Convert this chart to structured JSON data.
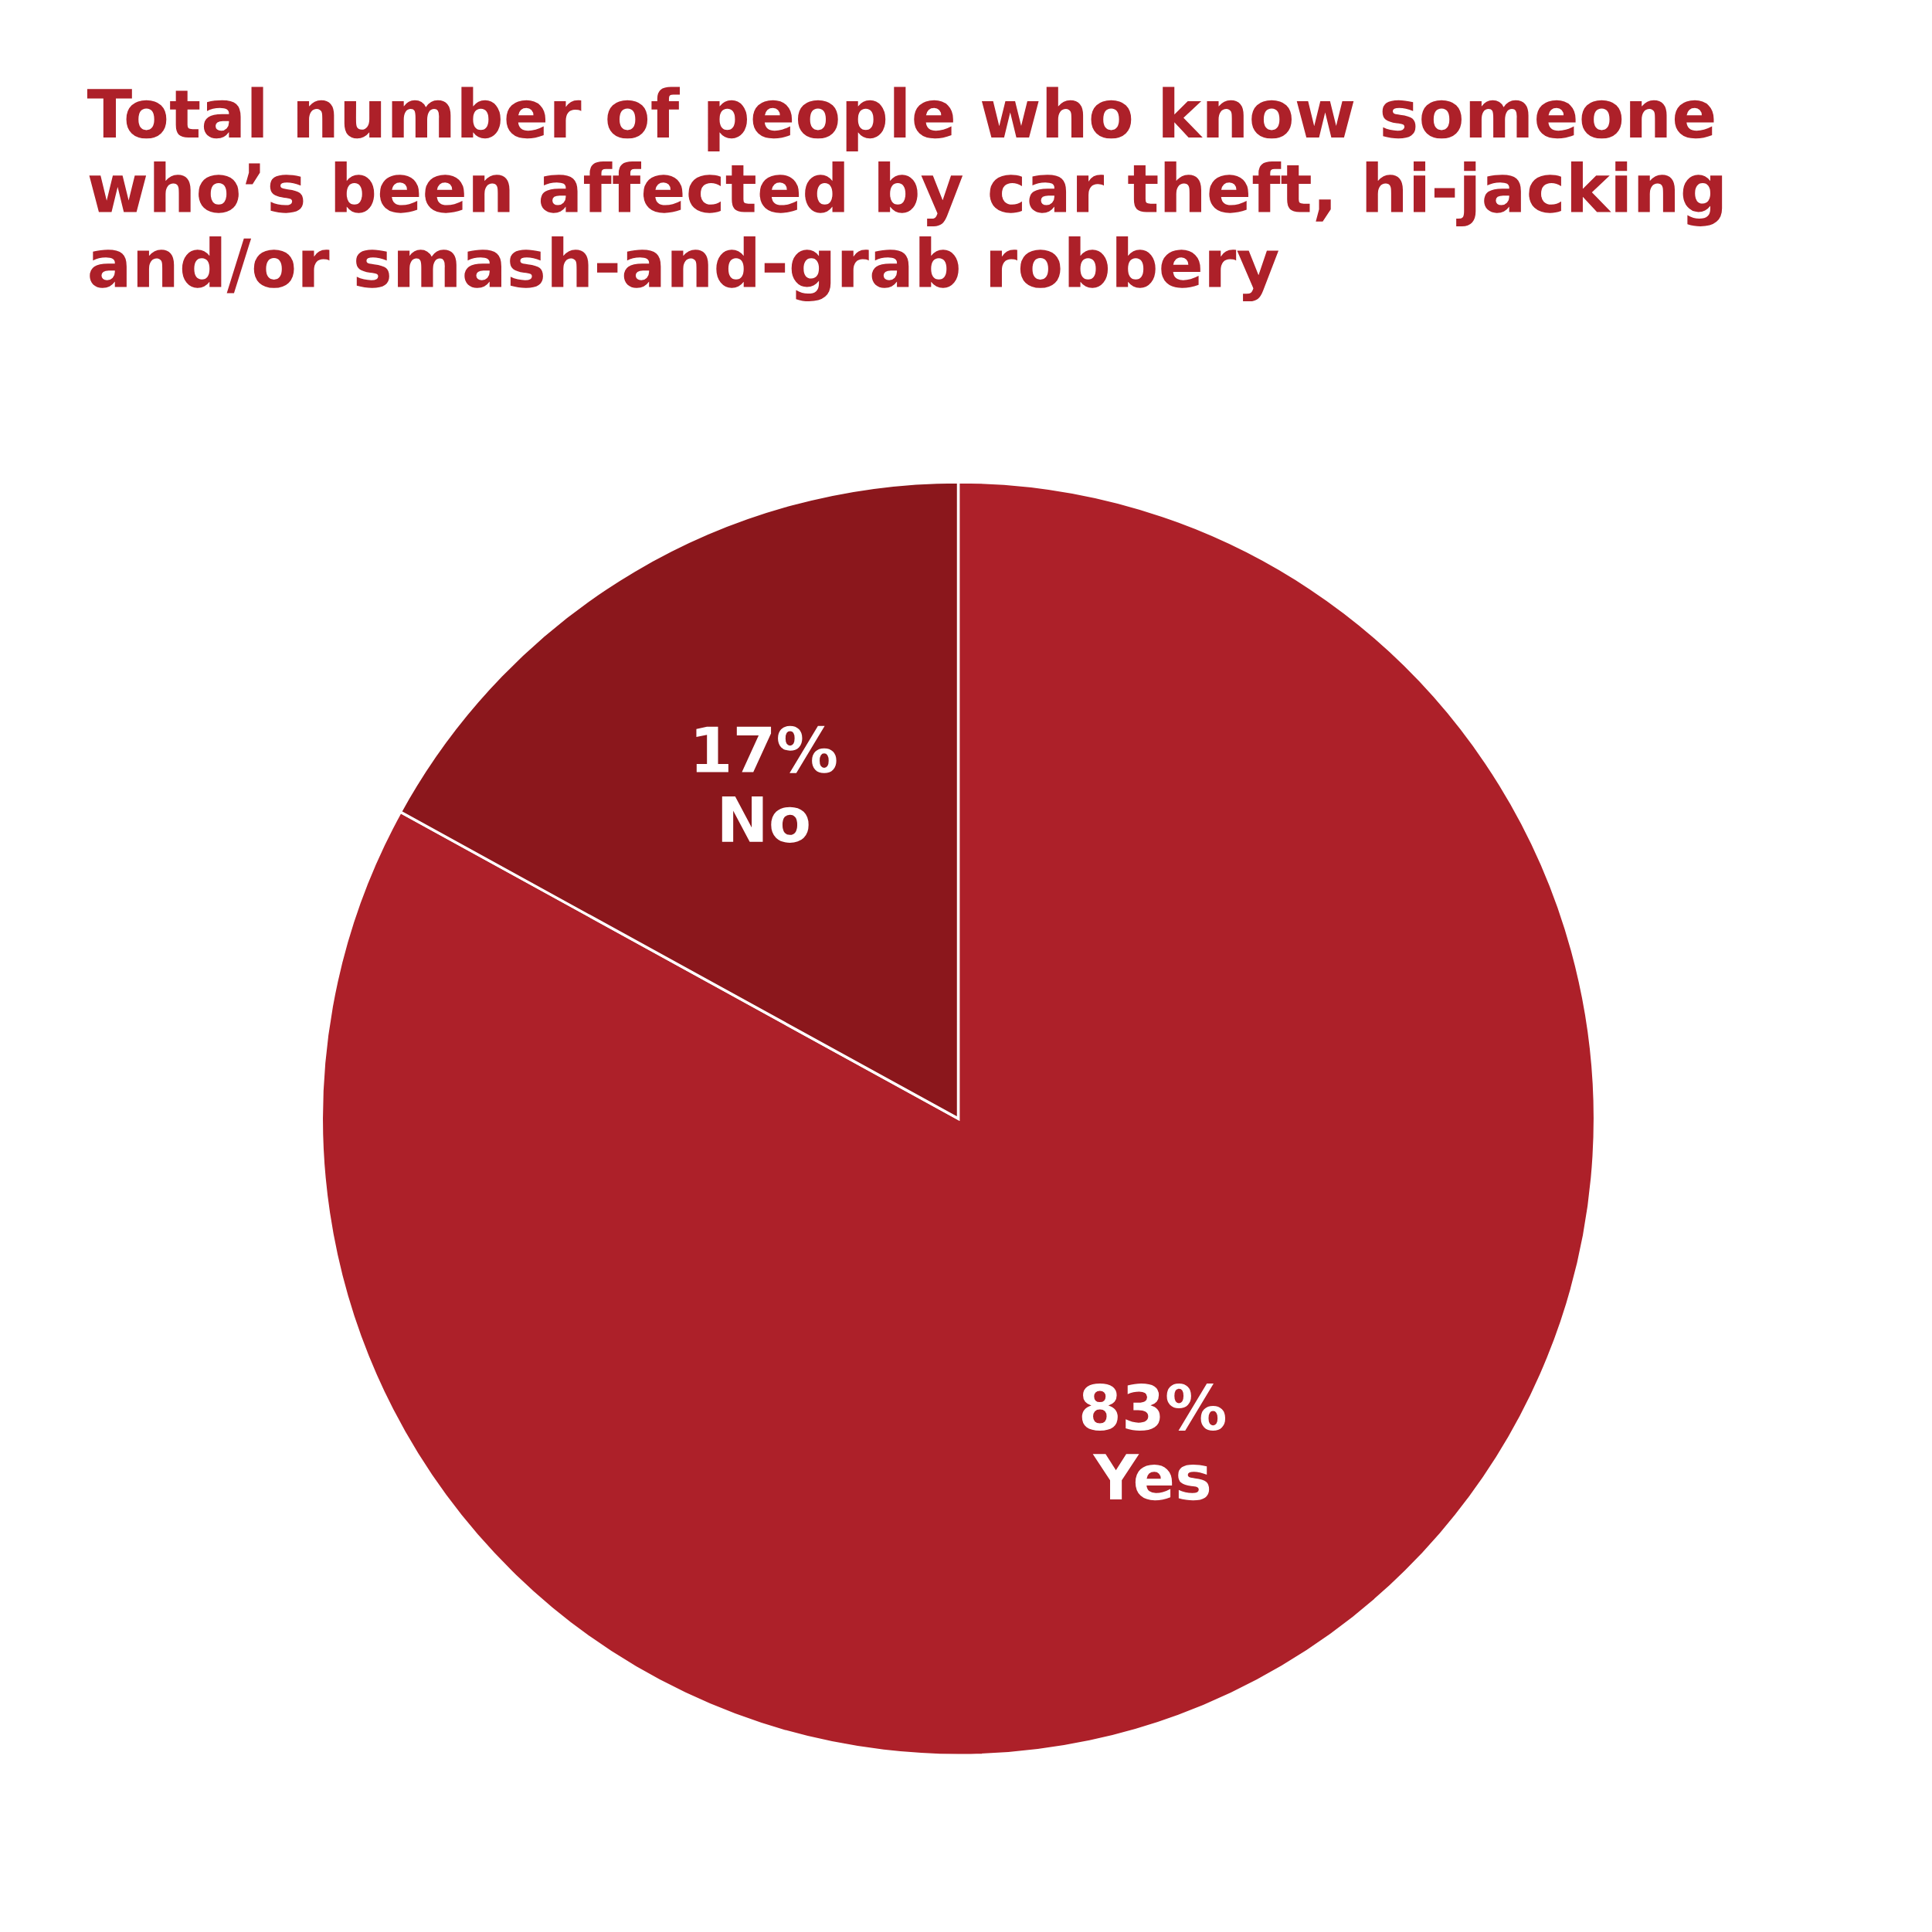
{
  "chart_data": {
    "type": "pie",
    "title": "Total number of people who know someone who’s been affected by car theft, hi-jacking and/or smash-and-grab robbery",
    "categories": [
      "Yes",
      "No"
    ],
    "values": [
      83,
      17
    ],
    "colors": [
      "#ad2029",
      "#8b171c"
    ],
    "value_labels": [
      "83%",
      "17%"
    ],
    "legend": false
  }
}
